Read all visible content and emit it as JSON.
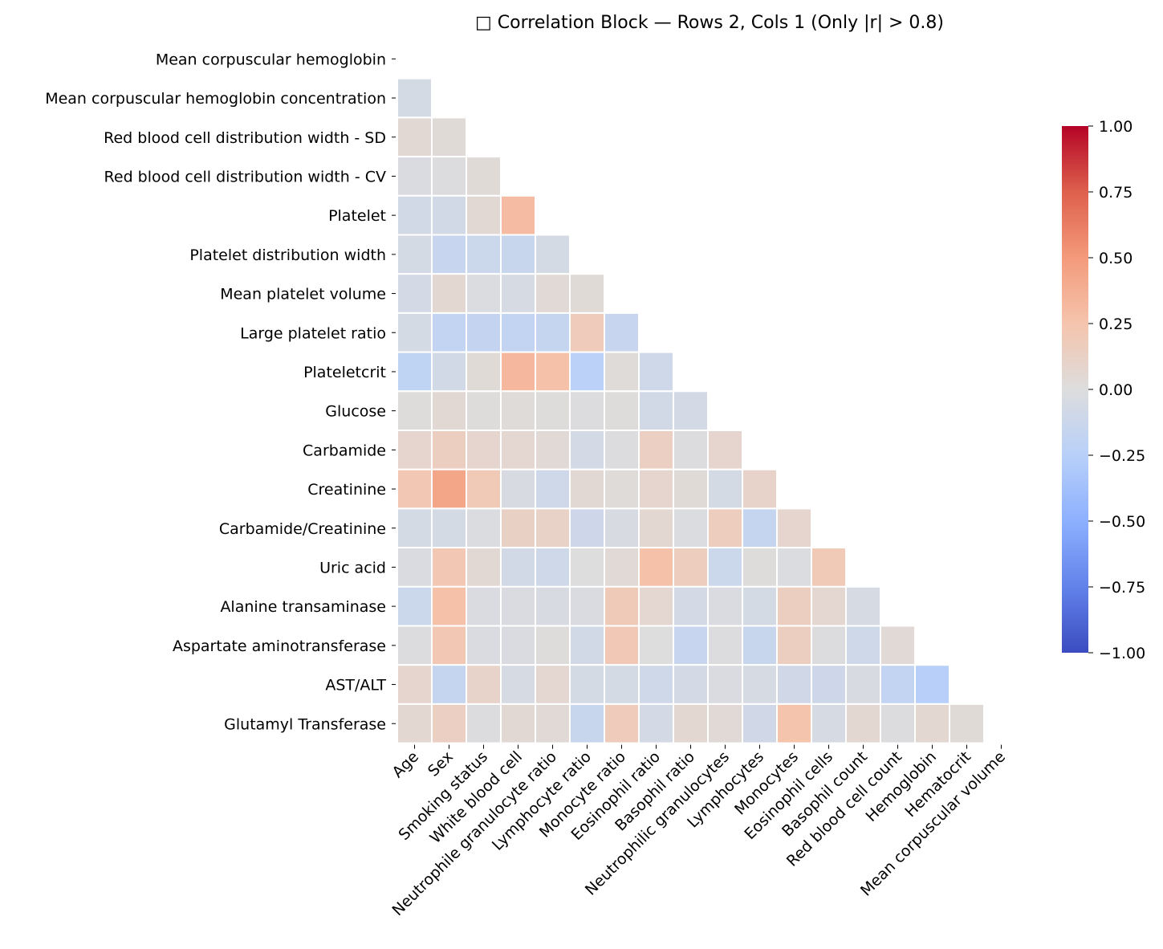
{
  "chart_data": {
    "type": "heatmap",
    "title": "□ Correlation Block — Rows 2, Cols 1 (Only |r| > 0.8)",
    "xlabel": "",
    "ylabel": "",
    "colormap": "coolwarm",
    "vmin": -1.0,
    "vmax": 1.0,
    "mask": "upper-triangle",
    "x_categories": [
      "Age",
      "Sex",
      "Smoking status",
      "White blood cell",
      "Neutrophile granulocyte ratio",
      "Lymphocyte ratio",
      "Monocyte ratio",
      "Eosinophil ratio",
      "Basophil ratio",
      "Neutrophilic granulocytes",
      "Lymphocytes",
      "Monocytes",
      "Eosinophil cells",
      "Basophil count",
      "Red blood cell count",
      "Hemoglobin",
      "Hematocrit",
      "Mean corpuscular volume"
    ],
    "y_categories": [
      "Mean corpuscular hemoglobin",
      "Mean corpuscular hemoglobin concentration",
      "Red blood cell distribution width - SD",
      "Red blood cell distribution width - CV",
      "Platelet",
      "Platelet distribution width",
      "Mean platelet volume",
      "Large platelet ratio",
      "Plateletcrit",
      "Glucose",
      "Carbamide",
      "Creatinine",
      "Carbamide/Creatinine",
      "Uric acid",
      "Alanine transaminase",
      "Aspartate aminotransferase",
      "AST/ALT",
      "Glutamyl Transferase"
    ],
    "values": [
      [],
      [
        -0.06
      ],
      [
        0.05,
        0.03
      ],
      [
        -0.03,
        -0.01,
        0.03
      ],
      [
        -0.08,
        -0.08,
        0.05,
        0.3
      ],
      [
        -0.06,
        -0.15,
        -0.12,
        -0.14,
        -0.06
      ],
      [
        -0.07,
        0.06,
        -0.02,
        -0.05,
        0.04,
        0.03
      ],
      [
        -0.06,
        -0.18,
        -0.17,
        -0.18,
        -0.16,
        0.18,
        -0.15
      ],
      [
        -0.2,
        -0.08,
        0.03,
        0.32,
        0.27,
        -0.23,
        0.02,
        -0.1
      ],
      [
        0.01,
        0.05,
        0.01,
        0.02,
        0.01,
        -0.01,
        0.01,
        -0.08,
        -0.07
      ],
      [
        0.08,
        0.15,
        0.08,
        0.07,
        0.04,
        -0.07,
        -0.01,
        0.14,
        -0.01,
        0.08
      ],
      [
        0.22,
        0.43,
        0.2,
        -0.04,
        -0.1,
        0.05,
        0.02,
        0.08,
        0.03,
        -0.06,
        0.1
      ],
      [
        -0.06,
        -0.06,
        -0.02,
        0.13,
        0.11,
        -0.11,
        -0.04,
        0.06,
        -0.02,
        0.16,
        -0.16,
        0.08
      ],
      [
        -0.03,
        0.22,
        0.05,
        -0.08,
        -0.1,
        0.0,
        0.04,
        0.27,
        0.16,
        -0.12,
        0.01,
        -0.02,
        0.2
      ],
      [
        -0.12,
        0.27,
        -0.03,
        -0.03,
        -0.04,
        -0.03,
        0.19,
        0.07,
        -0.07,
        -0.03,
        -0.06,
        0.15,
        0.07,
        -0.05
      ],
      [
        -0.01,
        0.22,
        -0.03,
        -0.03,
        0.01,
        -0.08,
        0.21,
        0.0,
        -0.15,
        -0.01,
        -0.14,
        0.15,
        -0.01,
        -0.1,
        0.04
      ],
      [
        0.08,
        -0.16,
        0.1,
        -0.05,
        0.07,
        -0.06,
        -0.06,
        -0.1,
        -0.07,
        -0.03,
        -0.05,
        -0.09,
        -0.11,
        -0.04,
        -0.18,
        -0.25
      ],
      [
        0.06,
        0.14,
        -0.01,
        0.05,
        0.04,
        -0.14,
        0.18,
        -0.07,
        0.06,
        0.04,
        -0.09,
        0.25,
        -0.05,
        0.06,
        -0.01,
        0.06,
        0.03
      ]
    ],
    "colorbar": {
      "ticks": [
        "1.00",
        "0.75",
        "0.50",
        "0.25",
        "0.00",
        "−0.25",
        "−0.50",
        "−0.75",
        "−1.00"
      ]
    },
    "grid": false,
    "legend": "none"
  }
}
